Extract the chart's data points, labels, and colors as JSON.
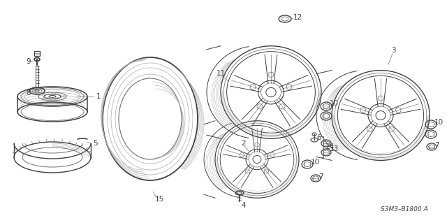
{
  "bg_color": "#ffffff",
  "diagram_code": "S3M3–B1800 A",
  "col": "#404040",
  "col_mid": "#707070",
  "col_light": "#aaaaaa",
  "col_xlight": "#cccccc"
}
